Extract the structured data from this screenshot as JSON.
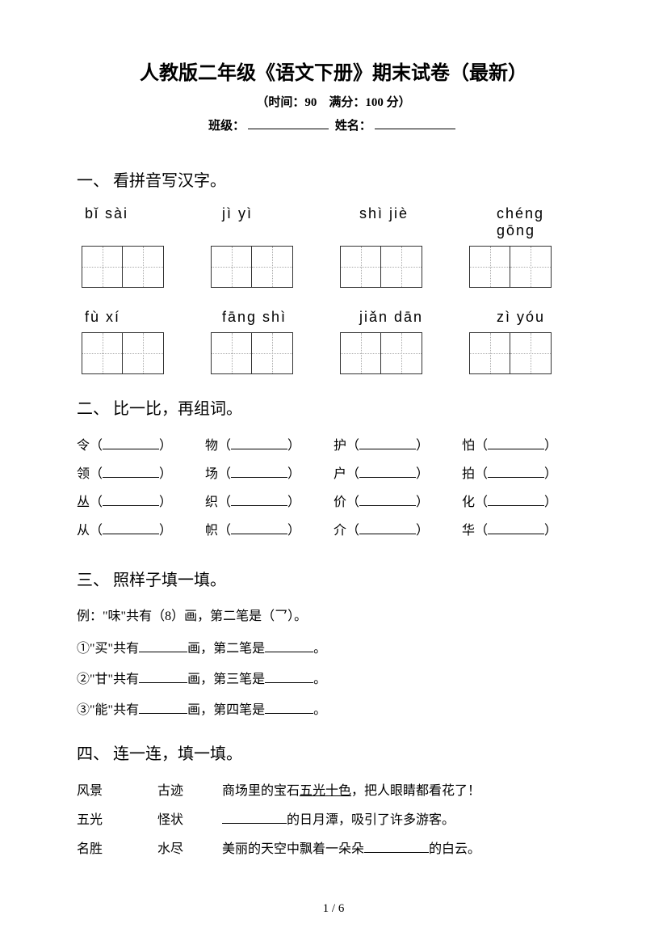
{
  "header": {
    "title": "人教版二年级《语文下册》期末试卷（最新）",
    "subtitle": "（时间：90　满分：100 分）",
    "class_label": "班级：",
    "name_label": "姓名："
  },
  "section1": {
    "title": "一、 看拼音写汉字。",
    "row1": [
      {
        "pinyin": "bǐ   sài"
      },
      {
        "pinyin": "jì    yì"
      },
      {
        "pinyin": "shì   jiè"
      },
      {
        "pinyin": "chéng gōng"
      }
    ],
    "row2": [
      {
        "pinyin": "fù   xí"
      },
      {
        "pinyin": "fāng  shì"
      },
      {
        "pinyin": "jiǎn  dān"
      },
      {
        "pinyin": "zì   yóu"
      }
    ]
  },
  "section2": {
    "title": "二、 比一比，再组词。",
    "rows": [
      [
        "令",
        "物",
        "护",
        "怕"
      ],
      [
        "领",
        "场",
        "户",
        "拍"
      ],
      [
        "丛",
        "织",
        "价",
        "化"
      ],
      [
        "从",
        "帜",
        "介",
        "华"
      ]
    ]
  },
  "section3": {
    "title": "三、 照样子填一填。",
    "example": "例：\"味\"共有（8）画，第二笔是（乛）。",
    "items": [
      {
        "num": "①",
        "char": "买",
        "part1": "\"共有",
        "part2": "画，第二笔是"
      },
      {
        "num": "②",
        "char": "甘",
        "part1": "\"共有",
        "part2": "画，第三笔是"
      },
      {
        "num": "③",
        "char": "能",
        "part1": "\"共有",
        "part2": "画，第四笔是"
      }
    ]
  },
  "section4": {
    "title": "四、 连一连，填一填。",
    "rows": [
      {
        "c1": "风景",
        "c2": "古迹",
        "c3_pre": "商场里的宝石",
        "c3_underline": "五光十色",
        "c3_post": "，把人眼睛都看花了！"
      },
      {
        "c1": "五光",
        "c2": "怪状",
        "c3_blank_pre": "",
        "c3_blank_post": "的日月潭，吸引了许多游客。"
      },
      {
        "c1": "名胜",
        "c2": "水尽",
        "c3_pre": "美丽的天空中飘着一朵朵",
        "c3_blank_post": "的白云。"
      }
    ]
  },
  "page": "1 / 6"
}
